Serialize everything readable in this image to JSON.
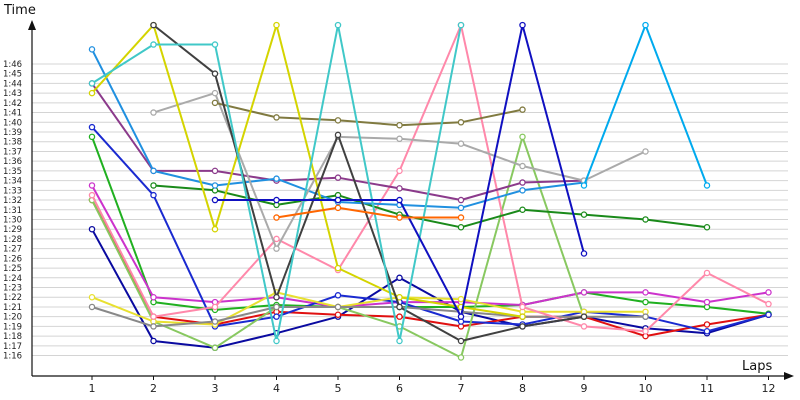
{
  "chart_data": {
    "type": "line",
    "title": "",
    "xlabel": "Laps",
    "ylabel": "Time",
    "grid": true,
    "legend": "none",
    "x_ticks": [
      "1",
      "2",
      "3",
      "4",
      "5",
      "6",
      "7",
      "8",
      "9",
      "10",
      "11",
      "12"
    ],
    "y_ticks": [
      "1:16",
      "1:17",
      "1:18",
      "1:19",
      "1:20",
      "1:21",
      "1:22",
      "1:23",
      "1:24",
      "1:25",
      "1:26",
      "1:27",
      "1:28",
      "1:29",
      "1:30",
      "1:31",
      "1:32",
      "1:33",
      "1:34",
      "1:35",
      "1:36",
      "1:37",
      "1:38",
      "1:39",
      "1:40",
      "1:41",
      "1:42",
      "1:43",
      "1:44",
      "1:45",
      "1:46"
    ],
    "ylim_seconds": [
      74,
      109
    ],
    "series": [
      {
        "color": "#0a0aa0",
        "x": [
          1,
          2,
          3,
          4,
          5,
          6,
          7,
          8,
          9,
          10,
          11,
          12
        ],
        "y": [
          89,
          77.5,
          76.8,
          78.3,
          80,
          84,
          80.5,
          79,
          80,
          78.8,
          78.3,
          80.2
        ]
      },
      {
        "color": "#e01010",
        "x": [
          1,
          2,
          3,
          4,
          5,
          6,
          7,
          8,
          9,
          10,
          11,
          12
        ],
        "y": [
          92,
          80,
          79.2,
          80.5,
          80.2,
          80,
          79,
          80,
          80,
          78,
          79.2,
          80.2
        ]
      },
      {
        "color": "#20b020",
        "x": [
          1,
          2,
          3,
          4,
          5,
          6,
          7,
          8,
          9,
          10,
          11,
          12
        ],
        "y": [
          98.5,
          81.5,
          80.7,
          81.2,
          81,
          81,
          81,
          81.2,
          82.5,
          81.5,
          81,
          80.3
        ]
      },
      {
        "color": "#cc33cc",
        "x": [
          1,
          2,
          3,
          4,
          5,
          6,
          7,
          8,
          9,
          10,
          11,
          12
        ],
        "y": [
          93.5,
          82,
          81.5,
          82,
          81,
          81.5,
          81.5,
          81.2,
          82.5,
          82.5,
          81.5,
          82.5
        ]
      },
      {
        "color": "#1a2ad0",
        "x": [
          1,
          2,
          3,
          4,
          5,
          6,
          7,
          8,
          9,
          10,
          11,
          12
        ],
        "y": [
          99.5,
          92.5,
          79,
          80,
          82.2,
          81.5,
          79.5,
          79.2,
          80.5,
          80,
          78.5,
          80.2
        ]
      },
      {
        "color": "#88c860",
        "x": [
          1,
          2,
          3,
          4,
          5,
          6,
          7,
          8,
          9
        ],
        "y": [
          92,
          79.5,
          76.8,
          81,
          81,
          79,
          75.8,
          98.5,
          80
        ]
      },
      {
        "color": "#e8e030",
        "x": [
          1,
          2,
          3,
          4,
          5,
          6,
          7,
          8,
          9,
          10
        ],
        "y": [
          82,
          79.5,
          79.2,
          82.5,
          81,
          82,
          81.8,
          80.5,
          80.5,
          80.5
        ]
      },
      {
        "color": "#888888",
        "x": [
          1,
          2,
          3,
          4,
          5,
          6,
          7,
          8,
          9,
          10
        ],
        "y": [
          81,
          79,
          79.5,
          81,
          81,
          81,
          80.5,
          80,
          80,
          80
        ]
      },
      {
        "color": "#ff88aa",
        "x": [
          1,
          2,
          3,
          4,
          5,
          6,
          7,
          8,
          9,
          10,
          11,
          12
        ],
        "y": [
          92.5,
          80,
          81,
          88,
          84.8,
          95,
          110,
          81,
          79,
          78.5,
          84.5,
          81.3
        ]
      },
      {
        "color": "#8b3a8b",
        "x": [
          1,
          2,
          3,
          4,
          5,
          6,
          7,
          8,
          9
        ],
        "y": [
          104,
          95,
          95,
          94,
          94.3,
          93.2,
          92,
          93.8,
          94
        ]
      },
      {
        "color": "#1a8a1a",
        "x": [
          2,
          3,
          4,
          5,
          6,
          7,
          8,
          9,
          10,
          11
        ],
        "y": [
          93.5,
          93,
          91.5,
          92.5,
          90.5,
          89.2,
          91,
          90.5,
          90,
          89.2
        ]
      },
      {
        "color": "#2090e0",
        "x": [
          1,
          2,
          3,
          4,
          5,
          6,
          7,
          8,
          9
        ],
        "y": [
          107.5,
          95,
          93.5,
          94.2,
          91.8,
          91.5,
          91.2,
          93,
          93.8
        ]
      },
      {
        "color": "#aaaaaa",
        "x": [
          2,
          3,
          4,
          5,
          6,
          7,
          8,
          9,
          10
        ],
        "y": [
          101,
          103,
          87,
          98.5,
          98.3,
          97.8,
          95.5,
          94,
          97
        ]
      },
      {
        "color": "#807a40",
        "x": [
          3,
          4,
          5,
          6,
          7,
          8
        ],
        "y": [
          102,
          100.5,
          100.2,
          99.7,
          100,
          101.3
        ]
      },
      {
        "color": "#d4d400",
        "x": [
          1,
          2,
          3,
          4,
          5,
          6,
          7,
          8
        ],
        "y": [
          103,
          110,
          89,
          110,
          85,
          82,
          81,
          80
        ]
      },
      {
        "color": "#404040",
        "x": [
          2,
          3,
          4,
          5,
          6,
          7,
          8,
          9
        ],
        "y": [
          110,
          105,
          82,
          98.7,
          81,
          77.5,
          79,
          80
        ]
      },
      {
        "color": "#40c8c8",
        "x": [
          1,
          2,
          3,
          4,
          5,
          6,
          7
        ],
        "y": [
          104,
          108,
          108,
          77.5,
          110,
          77.5,
          110
        ]
      },
      {
        "color": "#1010c0",
        "x": [
          3,
          4,
          5,
          6,
          7,
          8,
          9
        ],
        "y": [
          92,
          92,
          92,
          92,
          80,
          110,
          86.5
        ]
      },
      {
        "color": "#ff6600",
        "x": [
          4,
          5,
          6,
          7
        ],
        "y": [
          90.2,
          91.2,
          90.2,
          90.2
        ]
      },
      {
        "color": "#00aaee",
        "x": [
          9,
          10,
          11
        ],
        "y": [
          93.5,
          110,
          93.5
        ]
      }
    ]
  }
}
